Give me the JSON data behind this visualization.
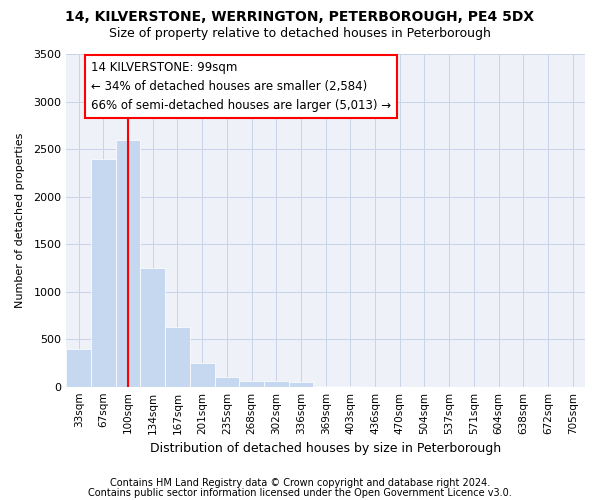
{
  "title1": "14, KILVERSTONE, WERRINGTON, PETERBOROUGH, PE4 5DX",
  "title2": "Size of property relative to detached houses in Peterborough",
  "xlabel": "Distribution of detached houses by size in Peterborough",
  "ylabel": "Number of detached properties",
  "footnote1": "Contains HM Land Registry data © Crown copyright and database right 2024.",
  "footnote2": "Contains public sector information licensed under the Open Government Licence v3.0.",
  "categories": [
    "33sqm",
    "67sqm",
    "100sqm",
    "134sqm",
    "167sqm",
    "201sqm",
    "235sqm",
    "268sqm",
    "302sqm",
    "336sqm",
    "369sqm",
    "403sqm",
    "436sqm",
    "470sqm",
    "504sqm",
    "537sqm",
    "571sqm",
    "604sqm",
    "638sqm",
    "672sqm",
    "705sqm"
  ],
  "values": [
    400,
    2400,
    2600,
    1250,
    630,
    250,
    100,
    60,
    55,
    50,
    8,
    8,
    0,
    0,
    0,
    0,
    0,
    0,
    0,
    0,
    0
  ],
  "bar_color": "#c5d8f0",
  "bar_edgecolor": "white",
  "grid_color": "#c8d4e8",
  "background_color": "#eef2f8",
  "annotation_text": "14 KILVERSTONE: 99sqm\n← 34% of detached houses are smaller (2,584)\n66% of semi-detached houses are larger (5,013) →",
  "annotation_box_color": "white",
  "annotation_box_edgecolor": "red",
  "vline_x_index": 2,
  "vline_color": "red",
  "ylim": [
    0,
    3500
  ],
  "yticks": [
    0,
    500,
    1000,
    1500,
    2000,
    2500,
    3000,
    3500
  ],
  "title1_fontsize": 10,
  "title2_fontsize": 9,
  "xlabel_fontsize": 9,
  "ylabel_fontsize": 8,
  "tick_fontsize": 8,
  "annot_fontsize": 8.5,
  "footnote_fontsize": 7
}
